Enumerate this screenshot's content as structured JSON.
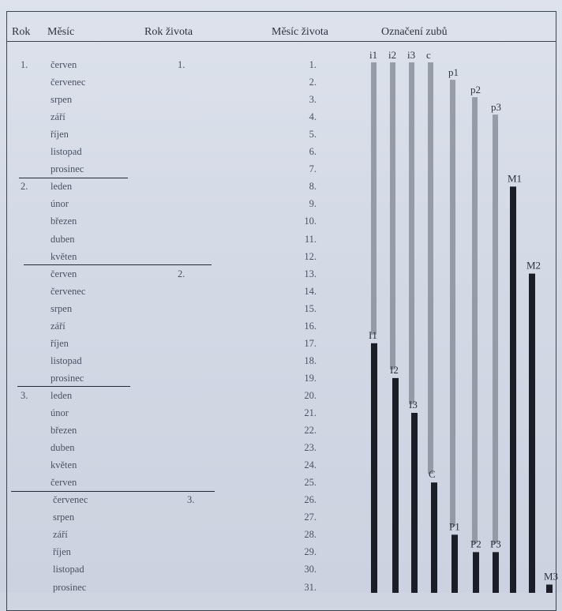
{
  "header": {
    "col_year": "Rok",
    "col_month": "Měsíc",
    "col_year_of_life": "Rok života",
    "col_month_of_life": "Měsíc života",
    "col_teeth": "Označení zubů"
  },
  "rows": [
    {
      "year": "1.",
      "month": "červen",
      "life_year": "1.",
      "life_month": "1."
    },
    {
      "year": "",
      "month": "červenec",
      "life_year": "",
      "life_month": "2."
    },
    {
      "year": "",
      "month": "srpen",
      "life_year": "",
      "life_month": "3."
    },
    {
      "year": "",
      "month": "září",
      "life_year": "",
      "life_month": "4."
    },
    {
      "year": "",
      "month": "říjen",
      "life_year": "",
      "life_month": "5."
    },
    {
      "year": "",
      "month": "listopad",
      "life_year": "",
      "life_month": "6."
    },
    {
      "year": "",
      "month": "prosinec",
      "life_year": "",
      "life_month": "7."
    },
    {
      "year": "2.",
      "month": "leden",
      "life_year": "",
      "life_month": "8."
    },
    {
      "year": "",
      "month": "únor",
      "life_year": "",
      "life_month": "9."
    },
    {
      "year": "",
      "month": "březen",
      "life_year": "",
      "life_month": "10."
    },
    {
      "year": "",
      "month": "duben",
      "life_year": "",
      "life_month": "11."
    },
    {
      "year": "",
      "month": "květen",
      "life_year": "",
      "life_month": "12."
    },
    {
      "year": "",
      "month": "červen",
      "life_year": "2.",
      "life_month": "13."
    },
    {
      "year": "",
      "month": "červenec",
      "life_year": "",
      "life_month": "14."
    },
    {
      "year": "",
      "month": "srpen",
      "life_year": "",
      "life_month": "15."
    },
    {
      "year": "",
      "month": "září",
      "life_year": "",
      "life_month": "16."
    },
    {
      "year": "",
      "month": "říjen",
      "life_year": "",
      "life_month": "17."
    },
    {
      "year": "",
      "month": "listopad",
      "life_year": "",
      "life_month": "18."
    },
    {
      "year": "",
      "month": "prosinec",
      "life_year": "",
      "life_month": "19."
    },
    {
      "year": "3.",
      "month": "leden",
      "life_year": "",
      "life_month": "20."
    },
    {
      "year": "",
      "month": "únor",
      "life_year": "",
      "life_month": "21."
    },
    {
      "year": "",
      "month": "březen",
      "life_year": "",
      "life_month": "22."
    },
    {
      "year": "",
      "month": "duben",
      "life_year": "",
      "life_month": "23."
    },
    {
      "year": "",
      "month": "květen",
      "life_year": "",
      "life_month": "24."
    },
    {
      "year": "",
      "month": "červen",
      "life_year": "",
      "life_month": "25."
    },
    {
      "year": "",
      "month": "červenec",
      "life_year": "3.",
      "life_month": "26."
    },
    {
      "year": "",
      "month": "srpen",
      "life_year": "",
      "life_month": "27."
    },
    {
      "year": "",
      "month": "září",
      "life_year": "",
      "life_month": "28."
    },
    {
      "year": "",
      "month": "říjen",
      "life_year": "",
      "life_month": "29."
    },
    {
      "year": "",
      "month": "listopad",
      "life_year": "",
      "life_month": "30."
    },
    {
      "year": "",
      "month": "prosinec",
      "life_year": "",
      "life_month": "31."
    }
  ],
  "separators_after_row": [
    7,
    12,
    19,
    25
  ],
  "colors": {
    "milk_bar": "#8a919c",
    "permanent_bar": "#1b1e26",
    "grid_line": "#232a36"
  },
  "chart_data": {
    "type": "bar",
    "x_axis": "tooth designation",
    "y_axis": "Měsíc života",
    "ylim": [
      1,
      31
    ],
    "y_direction": "downward",
    "series": [
      {
        "name": "milk",
        "bars": [
          {
            "label": "i1",
            "start": 1,
            "end": 16
          },
          {
            "label": "i2",
            "start": 1,
            "end": 18
          },
          {
            "label": "i3",
            "start": 1,
            "end": 20
          },
          {
            "label": "c",
            "start": 1,
            "end": 24
          },
          {
            "label": "p1",
            "start": 2,
            "end": 27
          },
          {
            "label": "p2",
            "start": 3,
            "end": 28
          },
          {
            "label": "p3",
            "start": 4,
            "end": 28
          }
        ]
      },
      {
        "name": "permanent",
        "bars": [
          {
            "label": "I1",
            "start": 17,
            "end": 31
          },
          {
            "label": "I2",
            "start": 19,
            "end": 31
          },
          {
            "label": "I3",
            "start": 21,
            "end": 31
          },
          {
            "label": "C",
            "start": 25,
            "end": 31
          },
          {
            "label": "P1",
            "start": 28,
            "end": 31
          },
          {
            "label": "P2",
            "start": 29,
            "end": 31
          },
          {
            "label": "P3",
            "start": 29,
            "end": 31
          },
          {
            "label": "M1",
            "start": 8,
            "end": 31
          },
          {
            "label": "M2",
            "start": 13,
            "end": 31
          },
          {
            "label": "M3",
            "start": 31,
            "end": 31
          }
        ]
      }
    ]
  }
}
